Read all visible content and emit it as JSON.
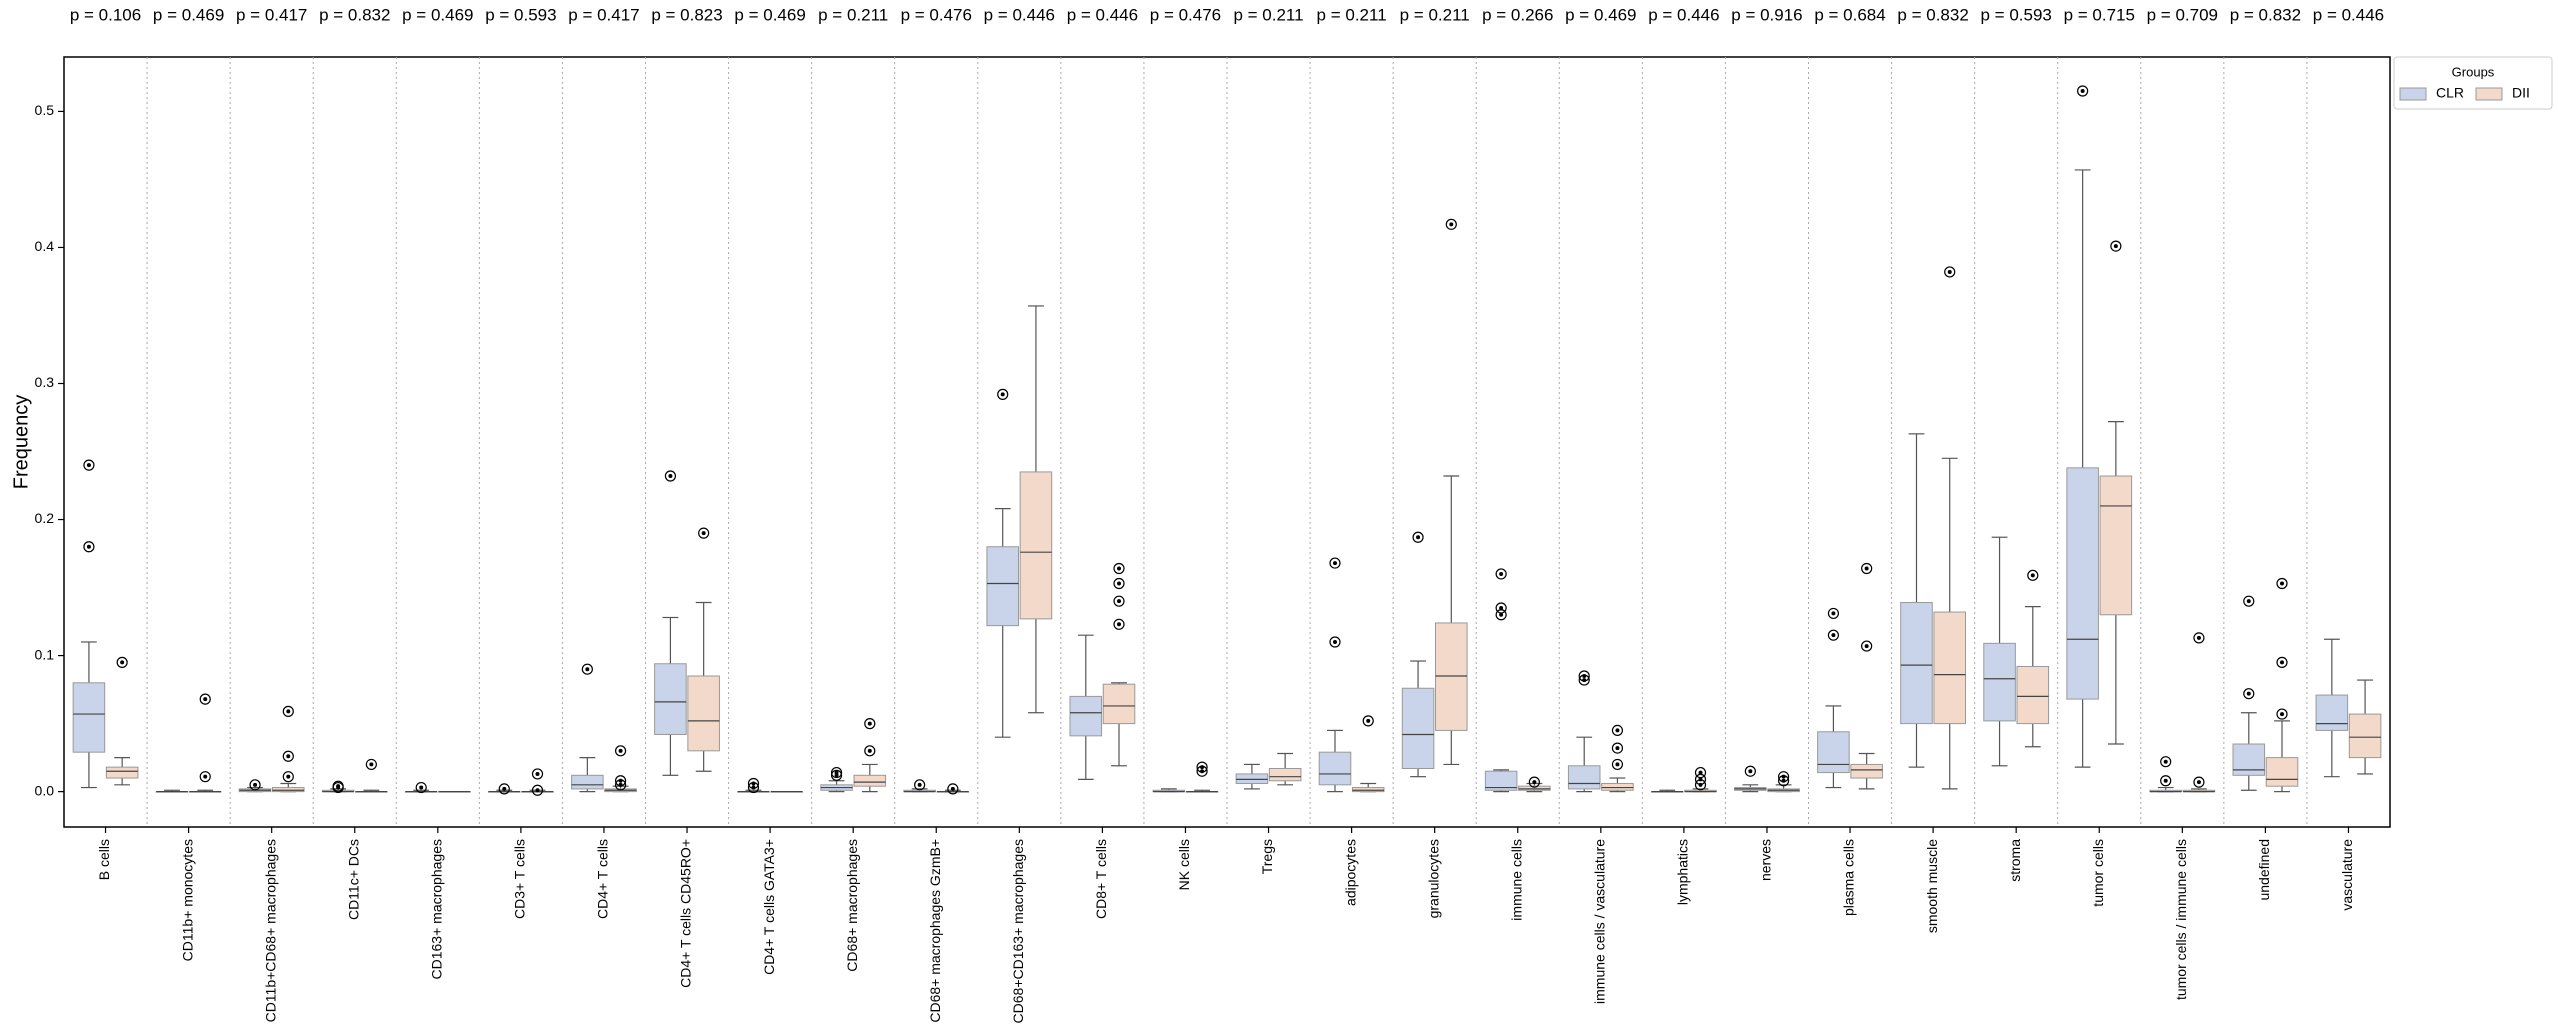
{
  "chart_data": {
    "type": "box",
    "y_label": "Frequency",
    "legend_title": "Groups",
    "legend_position": "outside upper right",
    "categories": [
      "B cells",
      "CD11b+ monocytes",
      "CD11b+CD68+ macrophages",
      "CD11c+ DCs",
      "CD163+ macrophages",
      "CD3+ T cells",
      "CD4+ T cells",
      "CD4+ T cells CD45RO+",
      "CD4+ T cells GATA3+",
      "CD68+ macrophages",
      "CD68+ macrophages GzmB+",
      "CD68+CD163+ macrophages",
      "CD8+ T cells",
      "NK cells",
      "Tregs",
      "adipocytes",
      "granulocytes",
      "immune cells",
      "immune cells / vasculature",
      "lymphatics",
      "nerves",
      "plasma cells",
      "smooth muscle",
      "stroma",
      "tumor cells",
      "tumor cells / immune cells",
      "undefined",
      "vasculature"
    ],
    "annotations": [
      "p = 0.106",
      "p = 0.469",
      "p = 0.417",
      "p = 0.832",
      "p = 0.469",
      "p = 0.593",
      "p = 0.417",
      "p = 0.823",
      "p = 0.469",
      "p = 0.211",
      "p = 0.476",
      "p = 0.446",
      "p = 0.446",
      "p = 0.476",
      "p = 0.211",
      "p = 0.211",
      "p = 0.211",
      "p = 0.266",
      "p = 0.469",
      "p = 0.446",
      "p = 0.916",
      "p = 0.684",
      "p = 0.832",
      "p = 0.593",
      "p = 0.715",
      "p = 0.709",
      "p = 0.832",
      "p = 0.446"
    ],
    "ylim": [
      -0.026,
      0.54
    ],
    "yticks": [
      {
        "value": 0,
        "label": "0.0"
      },
      0.1,
      0.2,
      0.3,
      0.4,
      0.5
    ],
    "series": [
      {
        "name": "CLR",
        "color": "#c9d4ea",
        "boxes": [
          {
            "whislo": 0.003,
            "q1": 0.029,
            "med": 0.057,
            "q3": 0.08,
            "whishi": 0.11,
            "fliers": [
              0.24,
              0.18
            ]
          },
          {
            "whislo": 0,
            "q1": 0,
            "med": 0,
            "q3": 0,
            "whishi": 0.001,
            "fliers": []
          },
          {
            "whislo": 0,
            "q1": 0,
            "med": 0.001,
            "q3": 0.002,
            "whishi": 0.003,
            "fliers": [
              0.005
            ]
          },
          {
            "whislo": 0,
            "q1": 0,
            "med": 0,
            "q3": 0.001,
            "whishi": 0.002,
            "fliers": [
              0.004,
              0.003
            ]
          },
          {
            "whislo": 0,
            "q1": 0,
            "med": 0,
            "q3": 0,
            "whishi": 0.001,
            "fliers": [
              0.003
            ]
          },
          {
            "whislo": 0,
            "q1": 0,
            "med": 0,
            "q3": 0,
            "whishi": 0.001,
            "fliers": [
              0.002
            ]
          },
          {
            "whislo": 0,
            "q1": 0.002,
            "med": 0.005,
            "q3": 0.012,
            "whishi": 0.025,
            "fliers": [
              0.09
            ]
          },
          {
            "whislo": 0.012,
            "q1": 0.042,
            "med": 0.066,
            "q3": 0.094,
            "whishi": 0.128,
            "fliers": [
              0.232
            ]
          },
          {
            "whislo": 0,
            "q1": 0,
            "med": 0,
            "q3": 0,
            "whishi": 0.001,
            "fliers": [
              0.006,
              0.003
            ]
          },
          {
            "whislo": 0,
            "q1": 0.001,
            "med": 0.003,
            "q3": 0.005,
            "whishi": 0.008,
            "fliers": [
              0.014,
              0.012
            ]
          },
          {
            "whislo": 0,
            "q1": 0,
            "med": 0,
            "q3": 0.001,
            "whishi": 0.002,
            "fliers": [
              0.005
            ]
          },
          {
            "whislo": 0.04,
            "q1": 0.122,
            "med": 0.153,
            "q3": 0.18,
            "whishi": 0.208,
            "fliers": [
              0.292
            ]
          },
          {
            "whislo": 0.009,
            "q1": 0.041,
            "med": 0.058,
            "q3": 0.07,
            "whishi": 0.115,
            "fliers": []
          },
          {
            "whislo": 0,
            "q1": 0,
            "med": 0,
            "q3": 0.001,
            "whishi": 0.002,
            "fliers": []
          },
          {
            "whislo": 0.002,
            "q1": 0.006,
            "med": 0.009,
            "q3": 0.013,
            "whishi": 0.02,
            "fliers": []
          },
          {
            "whislo": 0,
            "q1": 0.005,
            "med": 0.013,
            "q3": 0.029,
            "whishi": 0.045,
            "fliers": [
              0.168,
              0.11
            ]
          },
          {
            "whislo": 0.011,
            "q1": 0.017,
            "med": 0.042,
            "q3": 0.076,
            "whishi": 0.096,
            "fliers": [
              0.187
            ]
          },
          {
            "whislo": 0,
            "q1": 0.001,
            "med": 0.003,
            "q3": 0.015,
            "whishi": 0.016,
            "fliers": [
              0.16,
              0.135,
              0.13
            ]
          },
          {
            "whislo": 0,
            "q1": 0.002,
            "med": 0.006,
            "q3": 0.019,
            "whishi": 0.04,
            "fliers": [
              0.085,
              0.082
            ]
          },
          {
            "whislo": 0,
            "q1": 0,
            "med": 0,
            "q3": 0,
            "whishi": 0.001,
            "fliers": []
          },
          {
            "whislo": 0,
            "q1": 0.001,
            "med": 0.002,
            "q3": 0.003,
            "whishi": 0.005,
            "fliers": [
              0.015
            ]
          },
          {
            "whislo": 0.003,
            "q1": 0.014,
            "med": 0.02,
            "q3": 0.044,
            "whishi": 0.063,
            "fliers": [
              0.131,
              0.115
            ]
          },
          {
            "whislo": 0.018,
            "q1": 0.05,
            "med": 0.093,
            "q3": 0.139,
            "whishi": 0.263,
            "fliers": []
          },
          {
            "whislo": 0.019,
            "q1": 0.052,
            "med": 0.083,
            "q3": 0.109,
            "whishi": 0.187,
            "fliers": []
          },
          {
            "whislo": 0.018,
            "q1": 0.068,
            "med": 0.112,
            "q3": 0.238,
            "whishi": 0.457,
            "fliers": [
              0.515
            ]
          },
          {
            "whislo": 0,
            "q1": 0,
            "med": 0,
            "q3": 0.001,
            "whishi": 0.003,
            "fliers": [
              0.022,
              0.008
            ]
          },
          {
            "whislo": 0.001,
            "q1": 0.012,
            "med": 0.016,
            "q3": 0.035,
            "whishi": 0.058,
            "fliers": [
              0.14,
              0.072
            ]
          },
          {
            "whislo": 0.011,
            "q1": 0.045,
            "med": 0.05,
            "q3": 0.071,
            "whishi": 0.112,
            "fliers": []
          }
        ]
      },
      {
        "name": "DII",
        "color": "#f3d9c9",
        "boxes": [
          {
            "whislo": 0.005,
            "q1": 0.01,
            "med": 0.015,
            "q3": 0.018,
            "whishi": 0.025,
            "fliers": [
              0.095
            ]
          },
          {
            "whislo": 0,
            "q1": 0,
            "med": 0,
            "q3": 0,
            "whishi": 0.001,
            "fliers": [
              0.068,
              0.011
            ]
          },
          {
            "whislo": 0,
            "q1": 0,
            "med": 0.001,
            "q3": 0.003,
            "whishi": 0.006,
            "fliers": [
              0.059,
              0.026,
              0.011
            ]
          },
          {
            "whislo": 0,
            "q1": 0,
            "med": 0,
            "q3": 0,
            "whishi": 0.001,
            "fliers": [
              0.02
            ]
          },
          {
            "whislo": 0,
            "q1": 0,
            "med": 0,
            "q3": 0,
            "whishi": 0,
            "fliers": []
          },
          {
            "whislo": 0,
            "q1": 0,
            "med": 0,
            "q3": 0,
            "whishi": 0.001,
            "fliers": [
              0.013,
              0.001
            ]
          },
          {
            "whislo": 0,
            "q1": 0,
            "med": 0.001,
            "q3": 0.002,
            "whishi": 0.004,
            "fliers": [
              0.03,
              0.008,
              0.005
            ]
          },
          {
            "whislo": 0.015,
            "q1": 0.03,
            "med": 0.052,
            "q3": 0.085,
            "whishi": 0.139,
            "fliers": [
              0.19
            ]
          },
          {
            "whislo": 0,
            "q1": 0,
            "med": 0,
            "q3": 0,
            "whishi": 0,
            "fliers": []
          },
          {
            "whislo": 0,
            "q1": 0.004,
            "med": 0.007,
            "q3": 0.012,
            "whishi": 0.02,
            "fliers": [
              0.05,
              0.03
            ]
          },
          {
            "whislo": 0,
            "q1": 0,
            "med": 0,
            "q3": 0,
            "whishi": 0.001,
            "fliers": [
              0.002
            ]
          },
          {
            "whislo": 0.058,
            "q1": 0.127,
            "med": 0.176,
            "q3": 0.235,
            "whishi": 0.357,
            "fliers": []
          },
          {
            "whislo": 0.019,
            "q1": 0.05,
            "med": 0.063,
            "q3": 0.079,
            "whishi": 0.08,
            "fliers": [
              0.164,
              0.153,
              0.14,
              0.123
            ]
          },
          {
            "whislo": 0,
            "q1": 0,
            "med": 0,
            "q3": 0,
            "whishi": 0.001,
            "fliers": [
              0.018,
              0.015
            ]
          },
          {
            "whislo": 0.005,
            "q1": 0.008,
            "med": 0.011,
            "q3": 0.017,
            "whishi": 0.028,
            "fliers": []
          },
          {
            "whislo": 0,
            "q1": 0,
            "med": 0.001,
            "q3": 0.003,
            "whishi": 0.006,
            "fliers": [
              0.052
            ]
          },
          {
            "whislo": 0.02,
            "q1": 0.045,
            "med": 0.085,
            "q3": 0.124,
            "whishi": 0.232,
            "fliers": [
              0.417
            ]
          },
          {
            "whislo": 0,
            "q1": 0.001,
            "med": 0.002,
            "q3": 0.004,
            "whishi": 0.006,
            "fliers": [
              0.007
            ]
          },
          {
            "whislo": 0,
            "q1": 0.001,
            "med": 0.003,
            "q3": 0.006,
            "whishi": 0.01,
            "fliers": [
              0.045,
              0.032,
              0.02
            ]
          },
          {
            "whislo": 0,
            "q1": 0,
            "med": 0,
            "q3": 0.001,
            "whishi": 0.002,
            "fliers": [
              0.014,
              0.009,
              0.005
            ]
          },
          {
            "whislo": 0,
            "q1": 0,
            "med": 0.001,
            "q3": 0.002,
            "whishi": 0.005,
            "fliers": [
              0.011,
              0.008
            ]
          },
          {
            "whislo": 0.002,
            "q1": 0.01,
            "med": 0.016,
            "q3": 0.02,
            "whishi": 0.028,
            "fliers": [
              0.164,
              0.107
            ]
          },
          {
            "whislo": 0.002,
            "q1": 0.05,
            "med": 0.086,
            "q3": 0.132,
            "whishi": 0.245,
            "fliers": [
              0.382
            ]
          },
          {
            "whislo": 0.033,
            "q1": 0.05,
            "med": 0.07,
            "q3": 0.092,
            "whishi": 0.136,
            "fliers": [
              0.159
            ]
          },
          {
            "whislo": 0.035,
            "q1": 0.13,
            "med": 0.21,
            "q3": 0.232,
            "whishi": 0.272,
            "fliers": [
              0.401
            ]
          },
          {
            "whislo": 0,
            "q1": 0,
            "med": 0,
            "q3": 0.001,
            "whishi": 0.002,
            "fliers": [
              0.113,
              0.007
            ]
          },
          {
            "whislo": 0,
            "q1": 0.004,
            "med": 0.009,
            "q3": 0.025,
            "whishi": 0.052,
            "fliers": [
              0.153,
              0.095,
              0.057
            ]
          },
          {
            "whislo": 0.013,
            "q1": 0.025,
            "med": 0.04,
            "q3": 0.057,
            "whishi": 0.082,
            "fliers": []
          }
        ]
      }
    ]
  }
}
